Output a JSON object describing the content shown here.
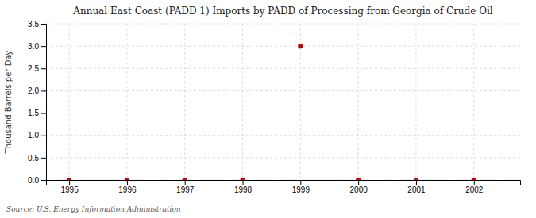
{
  "chart_data": {
    "type": "scatter",
    "title": "Annual East Coast (PADD 1) Imports by PADD of Processing from Georgia of Crude Oil",
    "y_label": "Thousand Barrels per Day",
    "annotations": [
      "Source: U.S. Energy Information Administration"
    ],
    "x": [
      1995,
      1996,
      1997,
      1998,
      1999,
      2000,
      2001,
      2002
    ],
    "values": [
      0.0,
      0.0,
      0.0,
      0.0,
      3.0,
      0.0,
      0.0,
      0.0
    ],
    "color": "#cc0000",
    "marker": "circle",
    "xlim": [
      1994.6,
      2002.8
    ],
    "ylim": [
      0.0,
      3.5
    ],
    "xticks": [
      1995,
      1996,
      1997,
      1998,
      1999,
      2000,
      2001,
      2002
    ],
    "yticks": [
      {
        "value": 0.0,
        "label": "0.0"
      },
      0.5,
      {
        "value": 1.0,
        "label": "1.0"
      },
      1.5,
      {
        "value": 2.0,
        "label": "2.0"
      },
      2.5,
      {
        "value": 3.0,
        "label": "3.0"
      },
      3.5
    ],
    "grid": true
  }
}
